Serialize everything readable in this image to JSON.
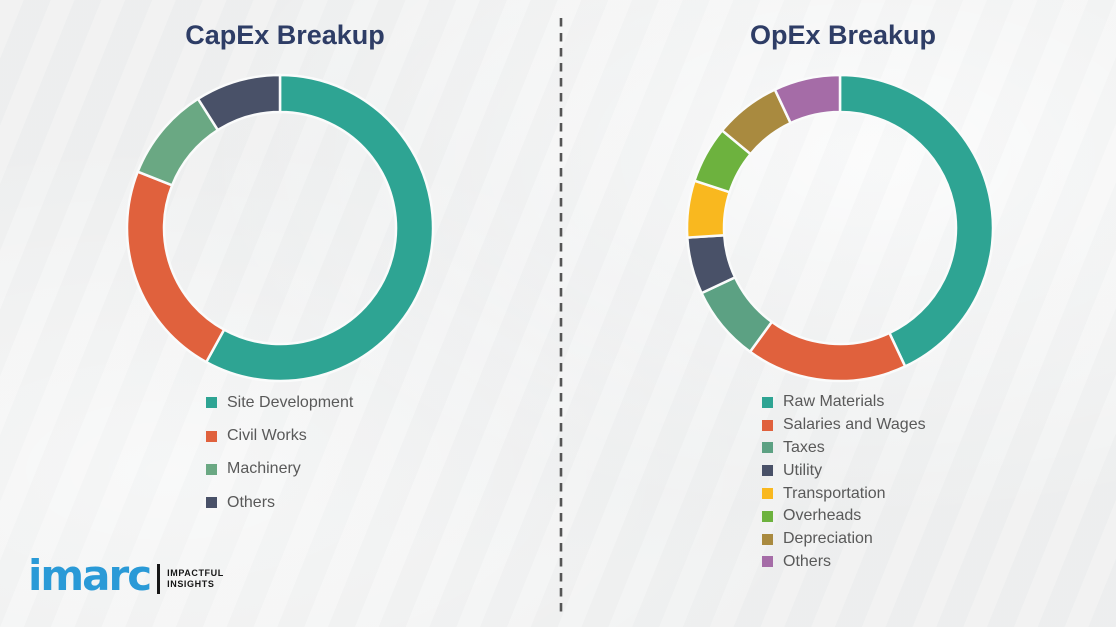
{
  "page": {
    "background_color": "#eff0f0",
    "title_color": "#2e3d66",
    "legend_text_color": "#595959"
  },
  "divider": {
    "orientation": "vertical",
    "style": "dashed",
    "color": "#555555"
  },
  "chart_data": [
    {
      "type": "pie",
      "subtype": "donut",
      "title": "CapEx Breakup",
      "categories": [
        "Site Development",
        "Civil Works",
        "Machinery",
        "Others"
      ],
      "values": [
        58,
        23,
        10,
        9
      ],
      "unit": "%",
      "values_estimated": true,
      "colors": [
        "#2ea493",
        "#e0613d",
        "#6aa883",
        "#495168"
      ],
      "legend_position": "bottom-center",
      "data_labels": "none",
      "start_angle_deg": 0,
      "direction": "clockwise"
    },
    {
      "type": "pie",
      "subtype": "donut",
      "title": "OpEx Breakup",
      "categories": [
        "Raw Materials",
        "Salaries and Wages",
        "Taxes",
        "Utility",
        "Transportation",
        "Overheads",
        "Depreciation",
        "Others"
      ],
      "values": [
        43,
        17,
        8,
        6,
        6,
        6,
        7,
        7
      ],
      "unit": "%",
      "values_estimated": true,
      "colors": [
        "#2ea493",
        "#e0613d",
        "#5ca183",
        "#495168",
        "#f9b81f",
        "#6db23e",
        "#a98a3f",
        "#a56ca7"
      ],
      "legend_position": "bottom-center",
      "data_labels": "none",
      "start_angle_deg": 0,
      "direction": "clockwise"
    }
  ],
  "logo": {
    "brand": "imarc",
    "brand_color": "#2a9ad7",
    "tagline_line1": "IMPACTFUL",
    "tagline_line2": "INSIGHTS"
  }
}
